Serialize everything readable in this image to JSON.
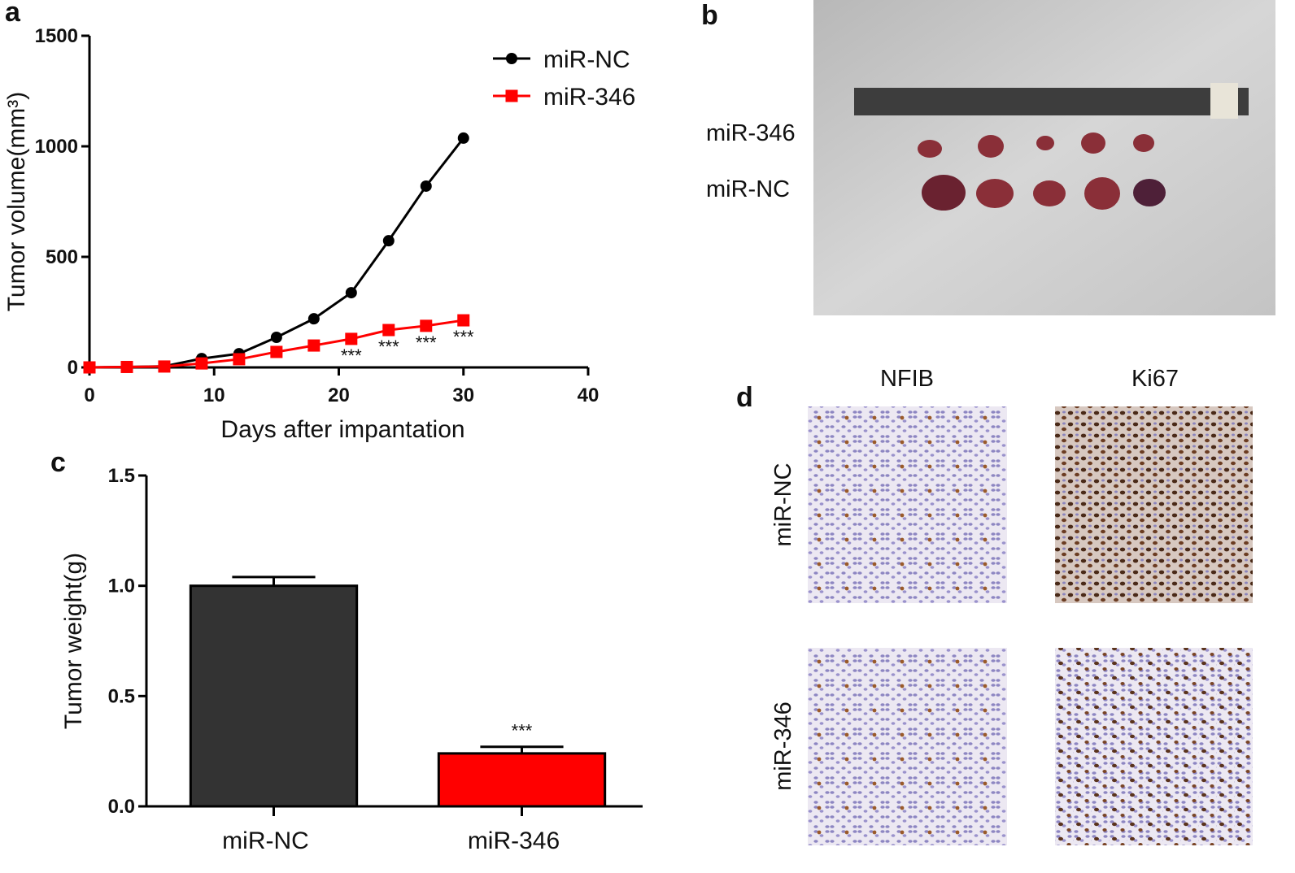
{
  "panel_labels": [
    "a",
    "b",
    "c",
    "d"
  ],
  "chart_data": [
    {
      "type": "line",
      "x": [
        0,
        3,
        6,
        9,
        12,
        15,
        18,
        21,
        24,
        27,
        30
      ],
      "xlabel": "Days after impantation",
      "ylabel": "Tumor volume(mm³)",
      "xlim": [
        0,
        40
      ],
      "xticks": [
        0,
        10,
        20,
        30,
        40
      ],
      "ylim": [
        0,
        1500
      ],
      "yticks": [
        0,
        500,
        1000,
        1500
      ],
      "legend": "upper right",
      "series": [
        {
          "name": "miR-NC",
          "color": "#000000",
          "marker": "circle",
          "values": [
            0,
            2,
            5,
            40,
            62,
            136,
            220,
            338,
            573,
            820,
            1037
          ]
        },
        {
          "name": "miR-346",
          "color": "#ff0000",
          "marker": "square",
          "values": [
            0,
            2,
            4,
            18,
            37,
            70,
            99,
            129,
            169,
            188,
            213
          ],
          "annotations": [
            null,
            null,
            null,
            null,
            null,
            null,
            null,
            "***",
            "***",
            "***",
            "***"
          ]
        }
      ]
    },
    {
      "type": "bar",
      "ylabel": "Tumor weight(g)",
      "categories": [
        "miR-NC",
        "miR-346"
      ],
      "values": [
        1.0,
        0.24
      ],
      "errors": [
        0.04,
        0.03
      ],
      "colors": [
        "#333333",
        "#ff0000"
      ],
      "annotations": [
        null,
        "***"
      ],
      "ylim": [
        0,
        1.5
      ],
      "yticks": [
        {
          "value": 0,
          "label": "0.0"
        },
        0.5,
        {
          "value": 1,
          "label": "1.0"
        },
        1.5
      ]
    }
  ],
  "photo_b": {
    "row_labels": [
      "miR-346",
      "miR-NC"
    ]
  },
  "ihc_d": {
    "column_labels": [
      "NFIB",
      "Ki67"
    ],
    "row_labels": [
      "miR-NC",
      "miR-346"
    ]
  }
}
